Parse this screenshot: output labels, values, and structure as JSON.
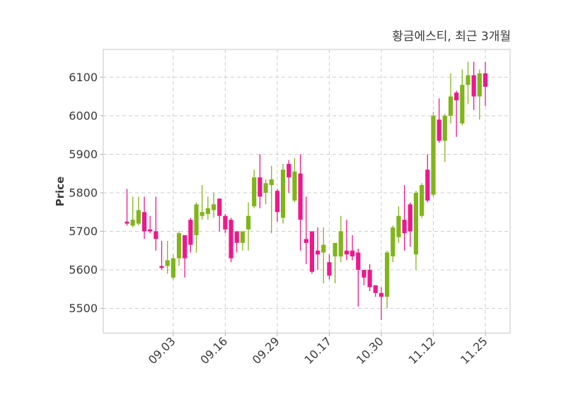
{
  "header": {
    "title": "황금에스티, 최근 3개월"
  },
  "chart_data": {
    "type": "candlestick",
    "title": "황금에스티, 최근 3개월",
    "xlabel": "",
    "ylabel": "Price",
    "y_ticks": [
      5500,
      5600,
      5700,
      5800,
      5900,
      6000,
      6100
    ],
    "ylim": [
      5436,
      6172
    ],
    "x_tick_labels": [
      "09.03",
      "09.16",
      "09.29",
      "10.17",
      "10.30",
      "11.12",
      "11.25"
    ],
    "x_tick_indices": [
      8,
      17,
      26,
      35,
      44,
      53,
      62
    ],
    "grid": true,
    "legend": "none",
    "colors": {
      "up": "#80b51a",
      "down": "#ee188c",
      "grid": "#cdcdcd",
      "spine": "#cfcfcf",
      "text": "#3a3a3a",
      "background": "#ffffff"
    },
    "candles_ohlc": [
      [
        5725,
        5810,
        5715,
        5720
      ],
      [
        5715,
        5790,
        5710,
        5730
      ],
      [
        5720,
        5790,
        5715,
        5755
      ],
      [
        5750,
        5790,
        5680,
        5700
      ],
      [
        5705,
        5740,
        5695,
        5700
      ],
      [
        5700,
        5790,
        5650,
        5680
      ],
      [
        5610,
        5675,
        5600,
        5605
      ],
      [
        5610,
        5675,
        5590,
        5625
      ],
      [
        5580,
        5640,
        5575,
        5630
      ],
      [
        5630,
        5700,
        5610,
        5695
      ],
      [
        5690,
        5690,
        5580,
        5630
      ],
      [
        5730,
        5735,
        5645,
        5665
      ],
      [
        5690,
        5775,
        5645,
        5770
      ],
      [
        5740,
        5820,
        5730,
        5750
      ],
      [
        5745,
        5790,
        5730,
        5760
      ],
      [
        5755,
        5800,
        5735,
        5770
      ],
      [
        5785,
        5785,
        5700,
        5740
      ],
      [
        5740,
        5745,
        5695,
        5705
      ],
      [
        5730,
        5735,
        5620,
        5630
      ],
      [
        5700,
        5700,
        5645,
        5670
      ],
      [
        5670,
        5700,
        5650,
        5700
      ],
      [
        5705,
        5775,
        5650,
        5740
      ],
      [
        5765,
        5860,
        5760,
        5840
      ],
      [
        5840,
        5900,
        5760,
        5790
      ],
      [
        5800,
        5835,
        5770,
        5825
      ],
      [
        5820,
        5870,
        5695,
        5835
      ],
      [
        5805,
        5810,
        5725,
        5750
      ],
      [
        5735,
        5875,
        5720,
        5860
      ],
      [
        5875,
        5885,
        5800,
        5840
      ],
      [
        5780,
        5890,
        5775,
        5855
      ],
      [
        5850,
        5900,
        5650,
        5730
      ],
      [
        5680,
        5790,
        5615,
        5670
      ],
      [
        5700,
        5700,
        5590,
        5595
      ],
      [
        5650,
        5710,
        5600,
        5640
      ],
      [
        5645,
        5710,
        5565,
        5665
      ],
      [
        5620,
        5640,
        5575,
        5585
      ],
      [
        5635,
        5670,
        5565,
        5670
      ],
      [
        5635,
        5740,
        5620,
        5700
      ],
      [
        5650,
        5730,
        5625,
        5640
      ],
      [
        5650,
        5690,
        5625,
        5635
      ],
      [
        5645,
        5655,
        5505,
        5600
      ],
      [
        5600,
        5600,
        5560,
        5580
      ],
      [
        5600,
        5615,
        5545,
        5555
      ],
      [
        5560,
        5560,
        5530,
        5540
      ],
      [
        5540,
        5555,
        5470,
        5530
      ],
      [
        5530,
        5650,
        5500,
        5645
      ],
      [
        5635,
        5715,
        5620,
        5710
      ],
      [
        5685,
        5765,
        5670,
        5740
      ],
      [
        5730,
        5820,
        5650,
        5695
      ],
      [
        5770,
        5775,
        5660,
        5700
      ],
      [
        5640,
        5805,
        5600,
        5800
      ],
      [
        5740,
        5825,
        5735,
        5820
      ],
      [
        5860,
        5900,
        5775,
        5780
      ],
      [
        5795,
        6010,
        5790,
        6000
      ],
      [
        5990,
        6045,
        5930,
        5935
      ],
      [
        5935,
        6005,
        5880,
        6000
      ],
      [
        6000,
        6110,
        5980,
        6050
      ],
      [
        6060,
        6065,
        5945,
        6040
      ],
      [
        5980,
        6120,
        5975,
        6080
      ],
      [
        6080,
        6140,
        6030,
        6105
      ],
      [
        6105,
        6140,
        6015,
        6050
      ],
      [
        6050,
        6120,
        5990,
        6110
      ],
      [
        6110,
        6140,
        6025,
        6075
      ]
    ]
  }
}
